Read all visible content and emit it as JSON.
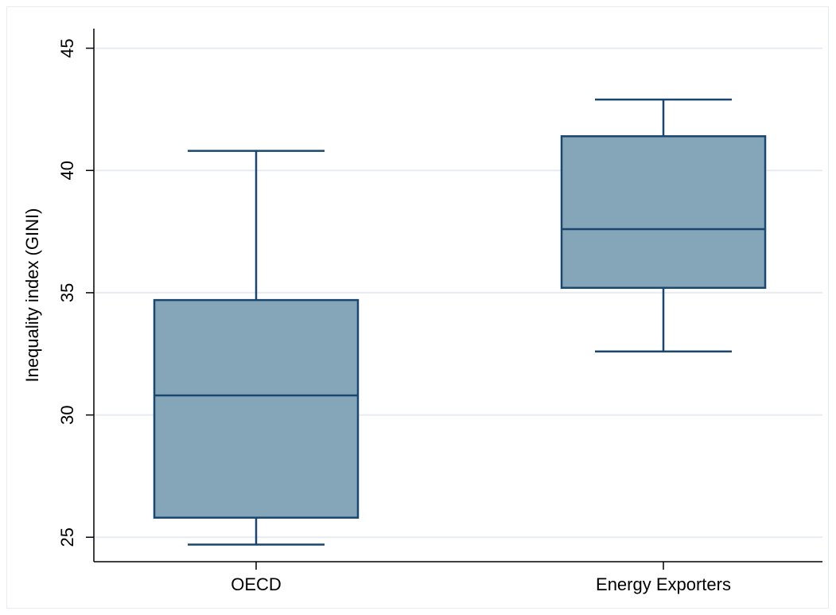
{
  "chart_data": {
    "type": "box",
    "title": "",
    "xlabel": "",
    "ylabel": "Inequality index (GINI)",
    "ylim": [
      24,
      45.8
    ],
    "yticks": [
      25,
      30,
      35,
      40,
      45
    ],
    "ytick_labels": [
      "25",
      "30",
      "35",
      "40",
      "45"
    ],
    "grid": true,
    "categories": [
      "OECD",
      "Energy Exporters"
    ],
    "boxes": [
      {
        "category": "OECD",
        "whisker_low": 24.7,
        "q1": 25.8,
        "median": 30.8,
        "q3": 34.7,
        "whisker_high": 40.8
      },
      {
        "category": "Energy Exporters",
        "whisker_low": 32.6,
        "q1": 35.2,
        "median": 37.6,
        "q3": 41.4,
        "whisker_high": 42.9
      }
    ],
    "colors": {
      "box_fill": "#85a5b8",
      "box_stroke": "#1a476f",
      "grid": "#e6ecf2",
      "axis": "#000000"
    }
  }
}
